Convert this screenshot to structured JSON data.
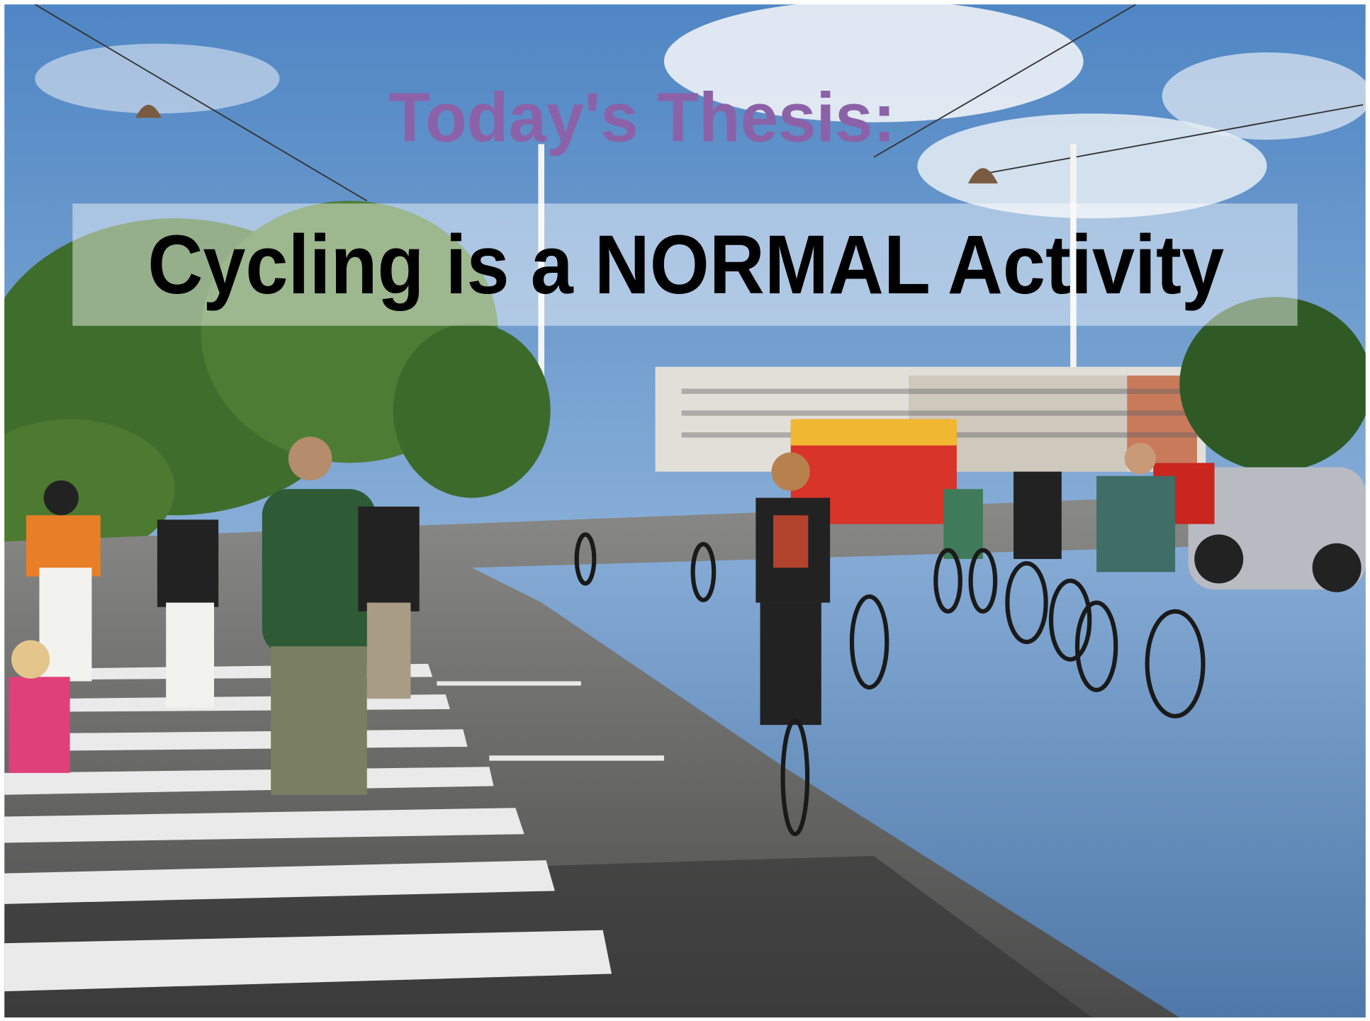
{
  "slide": {
    "title": "Today's Thesis:",
    "thesis": "Cycling is a NORMAL Activity"
  }
}
